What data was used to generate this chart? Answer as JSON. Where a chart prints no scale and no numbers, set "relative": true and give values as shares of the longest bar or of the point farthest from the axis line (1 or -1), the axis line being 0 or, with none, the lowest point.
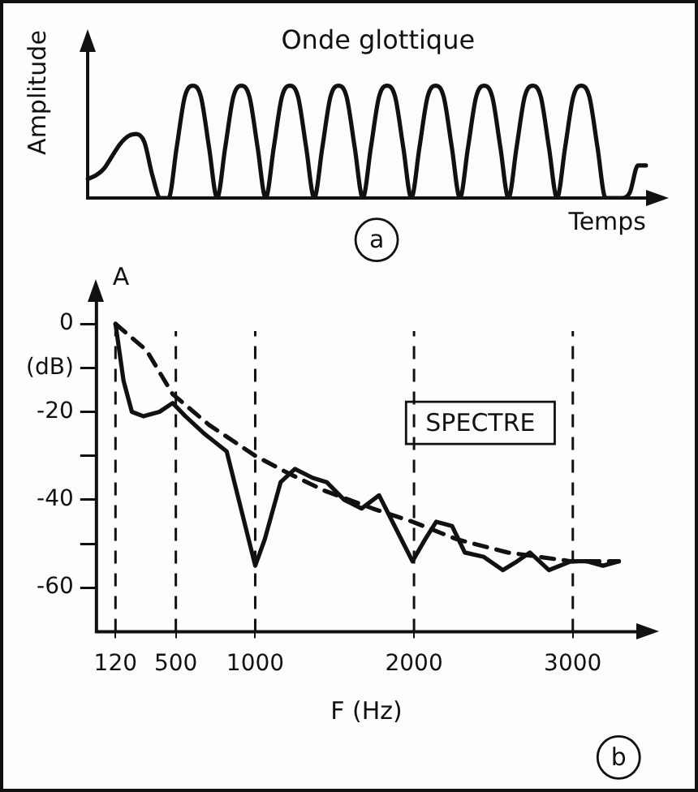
{
  "chart_data": [
    {
      "type": "line",
      "title": "Onde glottique",
      "xlabel": "Temps",
      "ylabel": "Amplitude",
      "relative": true,
      "legend": false,
      "grid": false,
      "tick_labels": false,
      "annotations": [
        "a"
      ],
      "categories": [
        null,
        null,
        null,
        null,
        null,
        null,
        null,
        null,
        null,
        null,
        null,
        null,
        null,
        null,
        null,
        null,
        null,
        null,
        null,
        null,
        null,
        null,
        null,
        null,
        null,
        null,
        null,
        null,
        null,
        null,
        null,
        null,
        null,
        null,
        null,
        null,
        null,
        null,
        null,
        null,
        null,
        null,
        null,
        null,
        null,
        null,
        null,
        null,
        null,
        null,
        null,
        null,
        null,
        null,
        null,
        null,
        null,
        null,
        null,
        null,
        null,
        null,
        null,
        null,
        null,
        null,
        null,
        null,
        null,
        null
      ],
      "series": [
        {
          "color": "#111111",
          "values": [
            0.17,
            0.2,
            0.26,
            0.37,
            0.48,
            0.55,
            0.57,
            0.5,
            0.2,
            0,
            0,
            0.45,
            0.9,
            1,
            0.9,
            0.45,
            0,
            0.45,
            0.9,
            1,
            0.9,
            0.45,
            0,
            0.45,
            0.9,
            1,
            0.9,
            0.45,
            0,
            0.45,
            0.9,
            1,
            0.9,
            0.45,
            0,
            0.45,
            0.9,
            1,
            0.9,
            0.45,
            0,
            0.45,
            0.9,
            1,
            0.9,
            0.45,
            0,
            0.45,
            0.9,
            1,
            0.9,
            0.45,
            0,
            0.45,
            0.9,
            1,
            0.9,
            0.45,
            0,
            0.45,
            0.9,
            1,
            0.9,
            0.45,
            0,
            0,
            0,
            0.05,
            0.29,
            0.29
          ]
        }
      ]
    },
    {
      "type": "line",
      "xlabel": "F (Hz)",
      "ylabel": "A",
      "legend": false,
      "grid": false,
      "annotations": [
        "SPECTRE",
        "b"
      ],
      "xlim": [
        0,
        3400
      ],
      "xticks": [
        120,
        500,
        1000,
        2000,
        3000
      ],
      "ylim": [
        -70,
        5
      ],
      "yticks": [
        0,
        {
          "value": -10,
          "label": "(dB)"
        },
        -20,
        {
          "value": -30,
          "label": null
        },
        -40,
        {
          "value": -50,
          "label": null
        },
        -60
      ],
      "ref_lines": [
        {
          "axis": "x",
          "value": 120,
          "color": "#111111",
          "line_style": "dashed"
        },
        {
          "axis": "x",
          "value": 500,
          "color": "#111111",
          "line_style": "dashed"
        },
        {
          "axis": "x",
          "value": 1000,
          "color": "#111111",
          "line_style": "dashed"
        },
        {
          "axis": "x",
          "value": 2000,
          "color": "#111111",
          "line_style": "dashed"
        },
        {
          "axis": "x",
          "value": 3000,
          "color": "#111111",
          "line_style": "dashed"
        }
      ],
      "series": [
        {
          "color": "#111111",
          "line_style": "solid",
          "x": [
            120,
            171,
            223,
            295,
            397,
            480,
            560,
            680,
            820,
            910,
            1000,
            1060,
            1160,
            1250,
            1360,
            1450,
            1560,
            1670,
            1780,
            1850,
            1990,
            2070,
            2140,
            2240,
            2320,
            2440,
            2560,
            2650,
            2730,
            2850,
            2990,
            3090,
            3190,
            3290
          ],
          "values": [
            0,
            -13,
            -20,
            -21,
            -20,
            -18,
            -21,
            -25,
            -29,
            -42,
            -55,
            -49,
            -36,
            -33,
            -35,
            -36,
            -40,
            -42,
            -39,
            -44,
            -54,
            -49,
            -45,
            -46,
            -52,
            -53,
            -56,
            -54,
            -52,
            -56,
            -54,
            -54,
            -55,
            -54
          ]
        },
        {
          "color": "#111111",
          "line_style": "dashed",
          "x": [
            120,
            315,
            480,
            710,
            1000,
            1210,
            1440,
            1740,
            1990,
            2270,
            2590,
            2990,
            3290
          ],
          "values": [
            0,
            -6,
            -16,
            -23,
            -30,
            -34,
            -38,
            -42,
            -45,
            -49,
            -52,
            -54,
            -54
          ]
        }
      ]
    }
  ]
}
